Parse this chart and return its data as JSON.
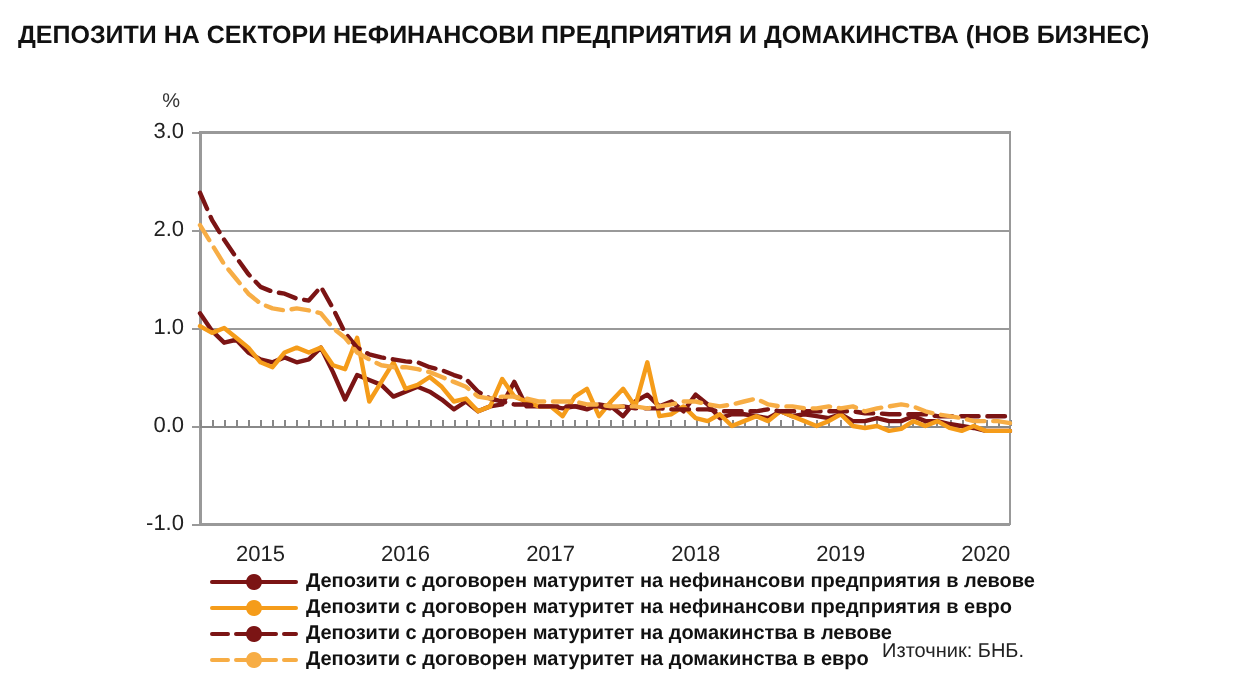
{
  "chart_data": {
    "type": "line",
    "title": "ДЕПОЗИТИ НА СЕКТОРИ НЕФИНАНСОВИ ПРЕДПРИЯТИЯ И ДОМАКИНСТВА (НОВ БИЗНЕС)",
    "ylabel": "%",
    "categories": [
      null,
      null,
      null,
      null,
      null,
      "2015",
      null,
      null,
      null,
      null,
      null,
      null,
      null,
      null,
      null,
      null,
      null,
      "2016",
      null,
      null,
      null,
      null,
      null,
      null,
      null,
      null,
      null,
      null,
      null,
      "2017",
      null,
      null,
      null,
      null,
      null,
      null,
      null,
      null,
      null,
      null,
      null,
      "2018",
      null,
      null,
      null,
      null,
      null,
      null,
      null,
      null,
      null,
      null,
      null,
      "2019",
      null,
      null,
      null,
      null,
      null,
      null,
      null,
      null,
      null,
      null,
      null,
      "2020",
      null,
      null
    ],
    "series": [
      {
        "name": "Депозити с договорен матуритет на нефинансови предприятия в левове",
        "color": "#7b1414",
        "line_style": "solid",
        "values": [
          1.15,
          0.97,
          0.85,
          0.88,
          0.75,
          0.68,
          0.65,
          0.7,
          0.65,
          0.68,
          0.8,
          0.55,
          0.27,
          0.52,
          0.47,
          0.42,
          0.3,
          0.35,
          0.4,
          0.35,
          0.27,
          0.17,
          0.25,
          0.15,
          0.2,
          0.22,
          0.45,
          0.2,
          0.2,
          0.2,
          0.18,
          0.2,
          0.17,
          0.22,
          0.2,
          0.1,
          0.25,
          0.32,
          0.2,
          0.25,
          0.15,
          0.32,
          0.22,
          0.08,
          0.12,
          0.12,
          0.1,
          0.08,
          0.15,
          0.1,
          0.12,
          0.1,
          0.08,
          0.12,
          0.05,
          0.05,
          0.08,
          0.05,
          0.05,
          0.1,
          0.05,
          0.05,
          0.02,
          0.0,
          -0.02,
          -0.05,
          -0.05,
          -0.05
        ]
      },
      {
        "name": "Депозити с договорен матуритет на нефинансови предприятия в евро",
        "color": "#f59c1a",
        "line_style": "solid",
        "values": [
          1.02,
          0.95,
          1.0,
          0.9,
          0.8,
          0.65,
          0.6,
          0.75,
          0.8,
          0.75,
          0.8,
          0.62,
          0.58,
          0.9,
          0.25,
          0.45,
          0.65,
          0.38,
          0.42,
          0.5,
          0.4,
          0.25,
          0.28,
          0.15,
          0.2,
          0.48,
          0.3,
          0.25,
          0.2,
          0.2,
          0.1,
          0.3,
          0.38,
          0.1,
          0.25,
          0.38,
          0.2,
          0.65,
          0.1,
          0.12,
          0.2,
          0.08,
          0.05,
          0.12,
          0.0,
          0.05,
          0.1,
          0.05,
          0.15,
          0.1,
          0.05,
          0.0,
          0.05,
          0.12,
          0.0,
          -0.02,
          0.0,
          -0.05,
          -0.03,
          0.05,
          0.0,
          0.05,
          -0.02,
          -0.05,
          0.0,
          -0.05,
          -0.05,
          -0.05
        ]
      },
      {
        "name": "Депозити с договорен матуритет на домакинства в левове",
        "color": "#7b1414",
        "line_style": "dashed",
        "values": [
          2.38,
          2.1,
          1.9,
          1.72,
          1.55,
          1.42,
          1.37,
          1.35,
          1.3,
          1.28,
          1.42,
          1.2,
          0.95,
          0.8,
          0.73,
          0.7,
          0.68,
          0.66,
          0.65,
          0.6,
          0.57,
          0.52,
          0.48,
          0.35,
          0.28,
          0.25,
          0.22,
          0.22,
          0.2,
          0.2,
          0.2,
          0.2,
          0.2,
          0.2,
          0.18,
          0.2,
          0.18,
          0.18,
          0.18,
          0.17,
          0.17,
          0.17,
          0.17,
          0.15,
          0.15,
          0.15,
          0.15,
          0.17,
          0.15,
          0.15,
          0.15,
          0.15,
          0.15,
          0.15,
          0.15,
          0.13,
          0.13,
          0.12,
          0.12,
          0.12,
          0.12,
          0.1,
          0.1,
          0.1,
          0.1,
          0.1,
          0.1,
          0.1
        ]
      },
      {
        "name": "Депозити с договорен матуритет на домакинства в евро",
        "color": "#f7ad45",
        "line_style": "dashed",
        "values": [
          2.05,
          1.85,
          1.65,
          1.5,
          1.35,
          1.25,
          1.2,
          1.18,
          1.2,
          1.18,
          1.15,
          1.0,
          0.9,
          0.75,
          0.68,
          0.62,
          0.6,
          0.6,
          0.58,
          0.55,
          0.5,
          0.45,
          0.4,
          0.3,
          0.28,
          0.3,
          0.3,
          0.28,
          0.25,
          0.25,
          0.25,
          0.25,
          0.22,
          0.22,
          0.2,
          0.2,
          0.2,
          0.18,
          0.2,
          0.22,
          0.25,
          0.25,
          0.22,
          0.2,
          0.22,
          0.25,
          0.28,
          0.22,
          0.2,
          0.2,
          0.18,
          0.18,
          0.2,
          0.18,
          0.2,
          0.15,
          0.18,
          0.2,
          0.22,
          0.2,
          0.15,
          0.12,
          0.1,
          0.08,
          0.05,
          0.05,
          0.05,
          0.03
        ]
      }
    ],
    "ylim": [
      -1,
      3
    ],
    "yticks": [
      {
        "value": -1,
        "label": "-1.0"
      },
      {
        "value": 0,
        "label": "0.0"
      },
      {
        "value": 1,
        "label": "1.0"
      },
      {
        "value": 2,
        "label": "2.0"
      },
      {
        "value": 3,
        "label": "3.0"
      }
    ],
    "grid": "y",
    "legend": "bottom",
    "marker": "none",
    "annotations": [
      "Източник: БНБ."
    ]
  }
}
